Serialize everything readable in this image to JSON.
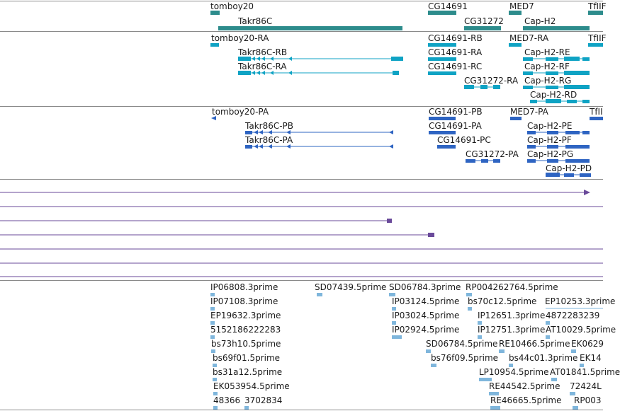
{
  "colors": {
    "gene": "#2d8c8c",
    "rna": "#0fa3c4",
    "protein": "#2e64c2",
    "alignment": "#6a4a9a",
    "est": "#7fb6dc",
    "separator": "#8a8a8a"
  },
  "genes": [
    {
      "label": "tomboy20"
    },
    {
      "label": "Takr86C"
    },
    {
      "label": "CG14691"
    },
    {
      "label": "CG31272"
    },
    {
      "label": "MED7"
    },
    {
      "label": "Cap-H2"
    },
    {
      "label": "TfIIF"
    }
  ],
  "transcripts": [
    {
      "label": "tomboy20-RA"
    },
    {
      "label": "Takr86C-RB"
    },
    {
      "label": "Takr86C-RA"
    },
    {
      "label": "CG14691-RB"
    },
    {
      "label": "CG14691-RA"
    },
    {
      "label": "CG14691-RC"
    },
    {
      "label": "CG31272-RA"
    },
    {
      "label": "MED7-RA"
    },
    {
      "label": "TfIIF"
    },
    {
      "label": "Cap-H2-RE"
    },
    {
      "label": "Cap-H2-RF"
    },
    {
      "label": "Cap-H2-RG"
    },
    {
      "label": "Cap-H2-RD"
    }
  ],
  "proteins": [
    {
      "label": "tomboy20-PA"
    },
    {
      "label": "Takr86C-PB"
    },
    {
      "label": "Takr86C-PA"
    },
    {
      "label": "CG14691-PB"
    },
    {
      "label": "CG14691-PA"
    },
    {
      "label": "CG14691-PC"
    },
    {
      "label": "CG31272-PA"
    },
    {
      "label": "MED7-PA"
    },
    {
      "label": "TfII"
    },
    {
      "label": "Cap-H2-PE"
    },
    {
      "label": "Cap-H2-PF"
    },
    {
      "label": "Cap-H2-PG"
    },
    {
      "label": "Cap-H2-PD"
    }
  ],
  "ests": [
    {
      "label": "IP06808.3prime"
    },
    {
      "label": "SD07439.5prime"
    },
    {
      "label": "SD06784.3prime"
    },
    {
      "label": "RP004262764.5prime"
    },
    {
      "label": "IP07108.3prime"
    },
    {
      "label": "IP03124.5prime"
    },
    {
      "label": "bs70c12.5prime"
    },
    {
      "label": "EP10253.3prime"
    },
    {
      "label": "EP19632.3prime"
    },
    {
      "label": "IP03024.5prime"
    },
    {
      "label": "IP12651.3prime"
    },
    {
      "label": "4872283239"
    },
    {
      "label": "5152186222283"
    },
    {
      "label": "IP02924.5prime"
    },
    {
      "label": "IP12751.3prime"
    },
    {
      "label": "AT10029.5prime"
    },
    {
      "label": "bs73h10.5prime"
    },
    {
      "label": "SD06784.5prime"
    },
    {
      "label": "RE10466.5prime"
    },
    {
      "label": "EK0629"
    },
    {
      "label": "bs69f01.5prime"
    },
    {
      "label": "bs76f09.5prime"
    },
    {
      "label": "bs44c01.3prime"
    },
    {
      "label": "EK14"
    },
    {
      "label": "bs31a12.5prime"
    },
    {
      "label": "LP10954.5prime"
    },
    {
      "label": "AT01841.5prime"
    },
    {
      "label": "EK053954.5prime"
    },
    {
      "label": "RE44542.5prime"
    },
    {
      "label": "72424L"
    },
    {
      "label": "48366"
    },
    {
      "label": "3702834"
    },
    {
      "label": "RE46665.5prime"
    },
    {
      "label": "RP003"
    }
  ]
}
